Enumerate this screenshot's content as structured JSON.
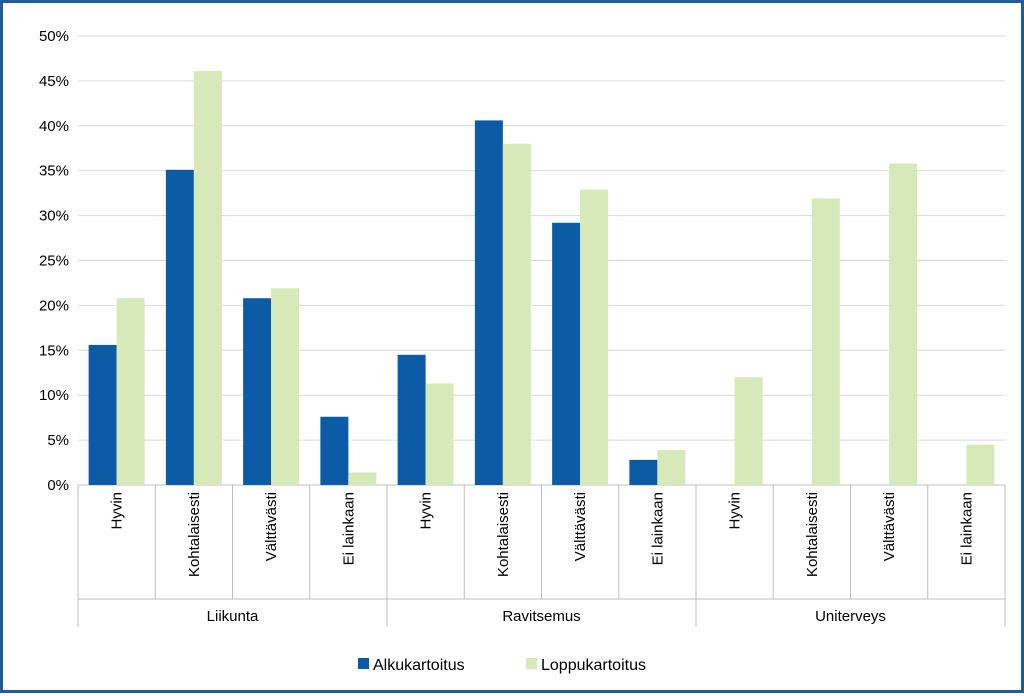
{
  "chart_data": {
    "type": "bar",
    "title": "",
    "xlabel": "",
    "ylabel": "",
    "ylim": [
      0,
      50
    ],
    "y_ticks": [
      "0%",
      "5%",
      "10%",
      "15%",
      "20%",
      "25%",
      "30%",
      "35%",
      "40%",
      "45%",
      "50%"
    ],
    "grid": true,
    "legend_position": "bottom",
    "groups": [
      {
        "name": "Liikunta",
        "categories": [
          "Hyvin",
          "Kohtalaisesti",
          "Välttävästi",
          "Ei lainkaan"
        ]
      },
      {
        "name": "Ravitsemus",
        "categories": [
          "Hyvin",
          "Kohtalaisesti",
          "Välttävästi",
          "Ei lainkaan"
        ]
      },
      {
        "name": "Uniterveys",
        "categories": [
          "Hyvin",
          "Kohtalaisesti",
          "Välttävästi",
          "Ei lainkaan"
        ]
      }
    ],
    "series": [
      {
        "name": "Alkukartoitus",
        "color": "#0b5ba7",
        "values": [
          15.6,
          35.1,
          20.8,
          7.6,
          14.5,
          40.6,
          29.2,
          2.8,
          null,
          null,
          null,
          null
        ]
      },
      {
        "name": "Loppukartoitus",
        "color": "#d7e9b9",
        "values": [
          20.8,
          46.1,
          21.9,
          1.4,
          11.3,
          38.0,
          32.9,
          3.9,
          12.0,
          31.9,
          35.8,
          4.5
        ]
      }
    ]
  },
  "colors": {
    "frame": "#1f5c9c",
    "grid": "#d9d9d9",
    "axis": "#bfbfbf"
  }
}
